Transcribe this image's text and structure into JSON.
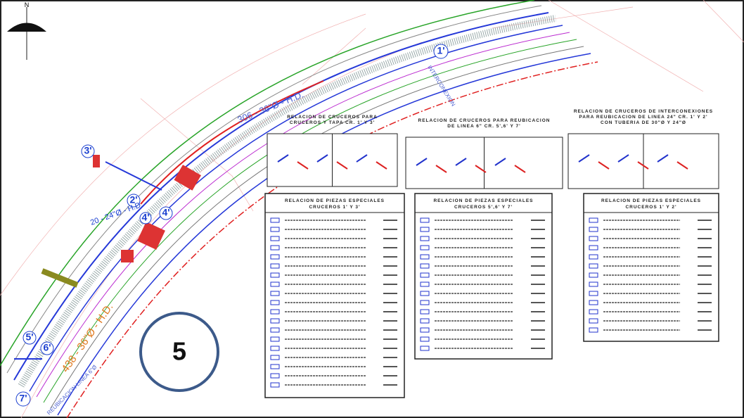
{
  "north_label": "N",
  "callout": "5",
  "markers": [
    "1'",
    "2'",
    "3'",
    "4'",
    "4'",
    "5'",
    "6'",
    "7'"
  ],
  "pipe_labels": [
    "306 - 36\"Ø - H.D.",
    "438 - 36\"Ø - H.D.",
    "20 - 24\"Ø - H.D."
  ],
  "annotations": [
    "INTERCONEXION",
    "REUBICACION LINEA 6\"Ø"
  ],
  "detail_titles": [
    [
      "RELACION DE CRUCEROS PARA",
      "CRUCEROS Y TAPA CR. 1' Y 3'"
    ],
    [
      "RELACION DE CRUCEROS PARA REUBICACION",
      "DE LINEA 6\" CR. 5',6' Y 7'"
    ],
    [
      "RELACION DE CRUCEROS DE INTERCONEXIONES",
      "PARA REUBICACION DE LINEA 24\" CR. 1' Y 2'",
      "CON TUBERIA DE 30\"Ø Y 24\"Ø"
    ]
  ],
  "tables": [
    {
      "title": "RELACION DE PIEZAS ESPECIALES",
      "subtitle": "CRUCEROS 1' Y 3'"
    },
    {
      "title": "RELACION DE PIEZAS ESPECIALES",
      "subtitle": "CRUCEROS 5',6' Y 7'"
    },
    {
      "title": "RELACION DE PIEZAS ESPECIALES",
      "subtitle": "CRUCEROS 1' Y 2'"
    }
  ]
}
